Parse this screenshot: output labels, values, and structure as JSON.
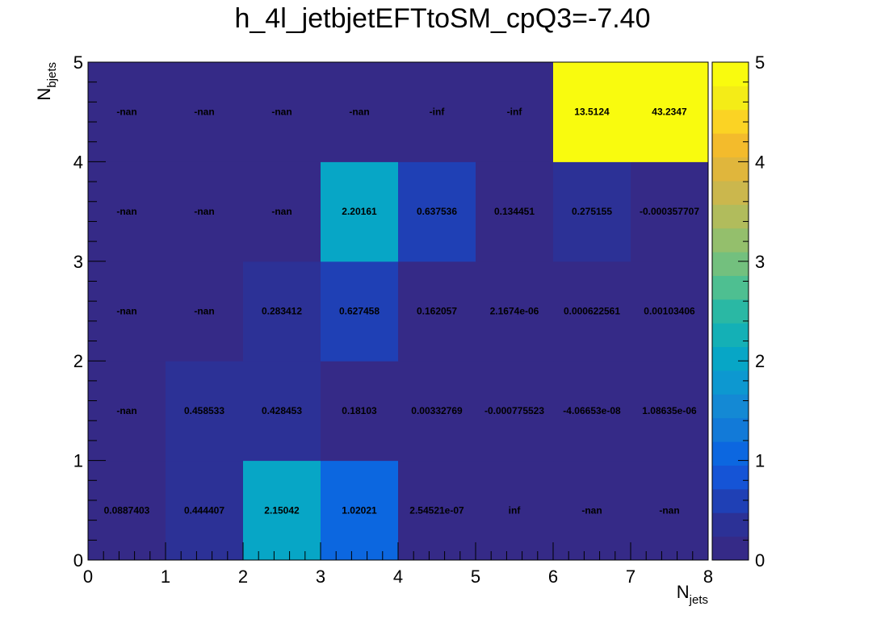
{
  "chart_data": {
    "type": "heatmap",
    "title": "h_4l_jetbjetEFTtoSM_cpQ3=-7.40",
    "xlabel": "N",
    "xlabel_sub": "jets",
    "ylabel": "N",
    "ylabel_sub": "bjets",
    "xlim": [
      0,
      8
    ],
    "ylim": [
      0,
      5
    ],
    "x_ticks": [
      "0",
      "1",
      "2",
      "3",
      "4",
      "5",
      "6",
      "7",
      "8"
    ],
    "y_ticks": [
      "0",
      "1",
      "2",
      "3",
      "4",
      "5"
    ],
    "colorbar": {
      "min": 0,
      "max": 5,
      "ticks": [
        "0",
        "1",
        "2",
        "3",
        "4",
        "5"
      ]
    },
    "rows": [
      {
        "y_bin": "0-1",
        "labels": [
          "0.0887403",
          "0.444407",
          "2.15042",
          "1.02021",
          "2.54521e-07",
          "inf",
          "-nan",
          "-nan"
        ]
      },
      {
        "y_bin": "1-2",
        "labels": [
          "-nan",
          "0.458533",
          "0.428453",
          "0.18103",
          "0.00332769",
          "-0.000775523",
          "-4.06653e-08",
          "1.08635e-06"
        ]
      },
      {
        "y_bin": "2-3",
        "labels": [
          "-nan",
          "-nan",
          "0.283412",
          "0.627458",
          "0.162057",
          "2.1674e-06",
          "0.000622561",
          "0.00103406"
        ]
      },
      {
        "y_bin": "3-4",
        "labels": [
          "-nan",
          "-nan",
          "-nan",
          "2.20161",
          "0.637536",
          "0.134451",
          "0.275155",
          "-0.000357707"
        ]
      },
      {
        "y_bin": "4-5",
        "labels": [
          "-nan",
          "-nan",
          "-nan",
          "-nan",
          "-inf",
          "-inf",
          "13.5124",
          "43.2347"
        ]
      }
    ]
  },
  "palette": [
    "#352a87",
    "#2c3196",
    "#1f40b5",
    "#1554d6",
    "#0c67e0",
    "#127ad8",
    "#1489d4",
    "#0d98d0",
    "#07a6c6",
    "#14b0b6",
    "#2ab8a4",
    "#4ebf91",
    "#73c07e",
    "#94bf6c",
    "#b1bc5c",
    "#cbb74d",
    "#e0b63c",
    "#f3bb2c",
    "#fbd324",
    "#f4ec17",
    "#f9fb0e"
  ],
  "empty_color": "#352a87"
}
